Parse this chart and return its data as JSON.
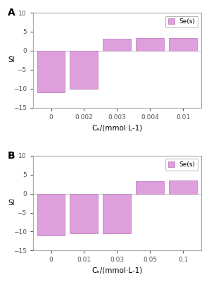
{
  "panel_A": {
    "label": "A",
    "x_positions": [
      0,
      1,
      2,
      3,
      4
    ],
    "x_ticklabels": [
      "0",
      "0.002",
      "0.003",
      "0.004",
      "0.01"
    ],
    "si_values": [
      -11,
      -10,
      3.1,
      3.4,
      3.4
    ],
    "xlabel": "Cₑ/(mmol·L-1)",
    "ylabel": "SI",
    "ylim": [
      -15,
      10
    ],
    "yticks": [
      -15,
      -10,
      -5,
      0,
      5,
      10
    ]
  },
  "panel_B": {
    "label": "B",
    "x_positions": [
      0,
      1,
      2,
      3,
      4
    ],
    "x_ticklabels": [
      "0",
      "0.01",
      "0.03",
      "0.05",
      "0.1"
    ],
    "si_values": [
      -11,
      -10.5,
      -10.5,
      3.2,
      3.5
    ],
    "xlabel": "Cₑ/(mmol·L-1)",
    "ylabel": "SI",
    "ylim": [
      -15,
      10
    ],
    "yticks": [
      -15,
      -10,
      -5,
      0,
      5,
      10
    ]
  },
  "bar_color": "#DDA0DD",
  "bar_edge_color": "#C080C0",
  "bar_width": 0.85,
  "legend_label": "Se(s)",
  "legend_color": "#DDA0DD",
  "legend_edge_color": "#C080C0",
  "background_color": "#ffffff",
  "spine_color": "#aaaaaa",
  "figsize": [
    2.97,
    4.0
  ],
  "dpi": 100
}
